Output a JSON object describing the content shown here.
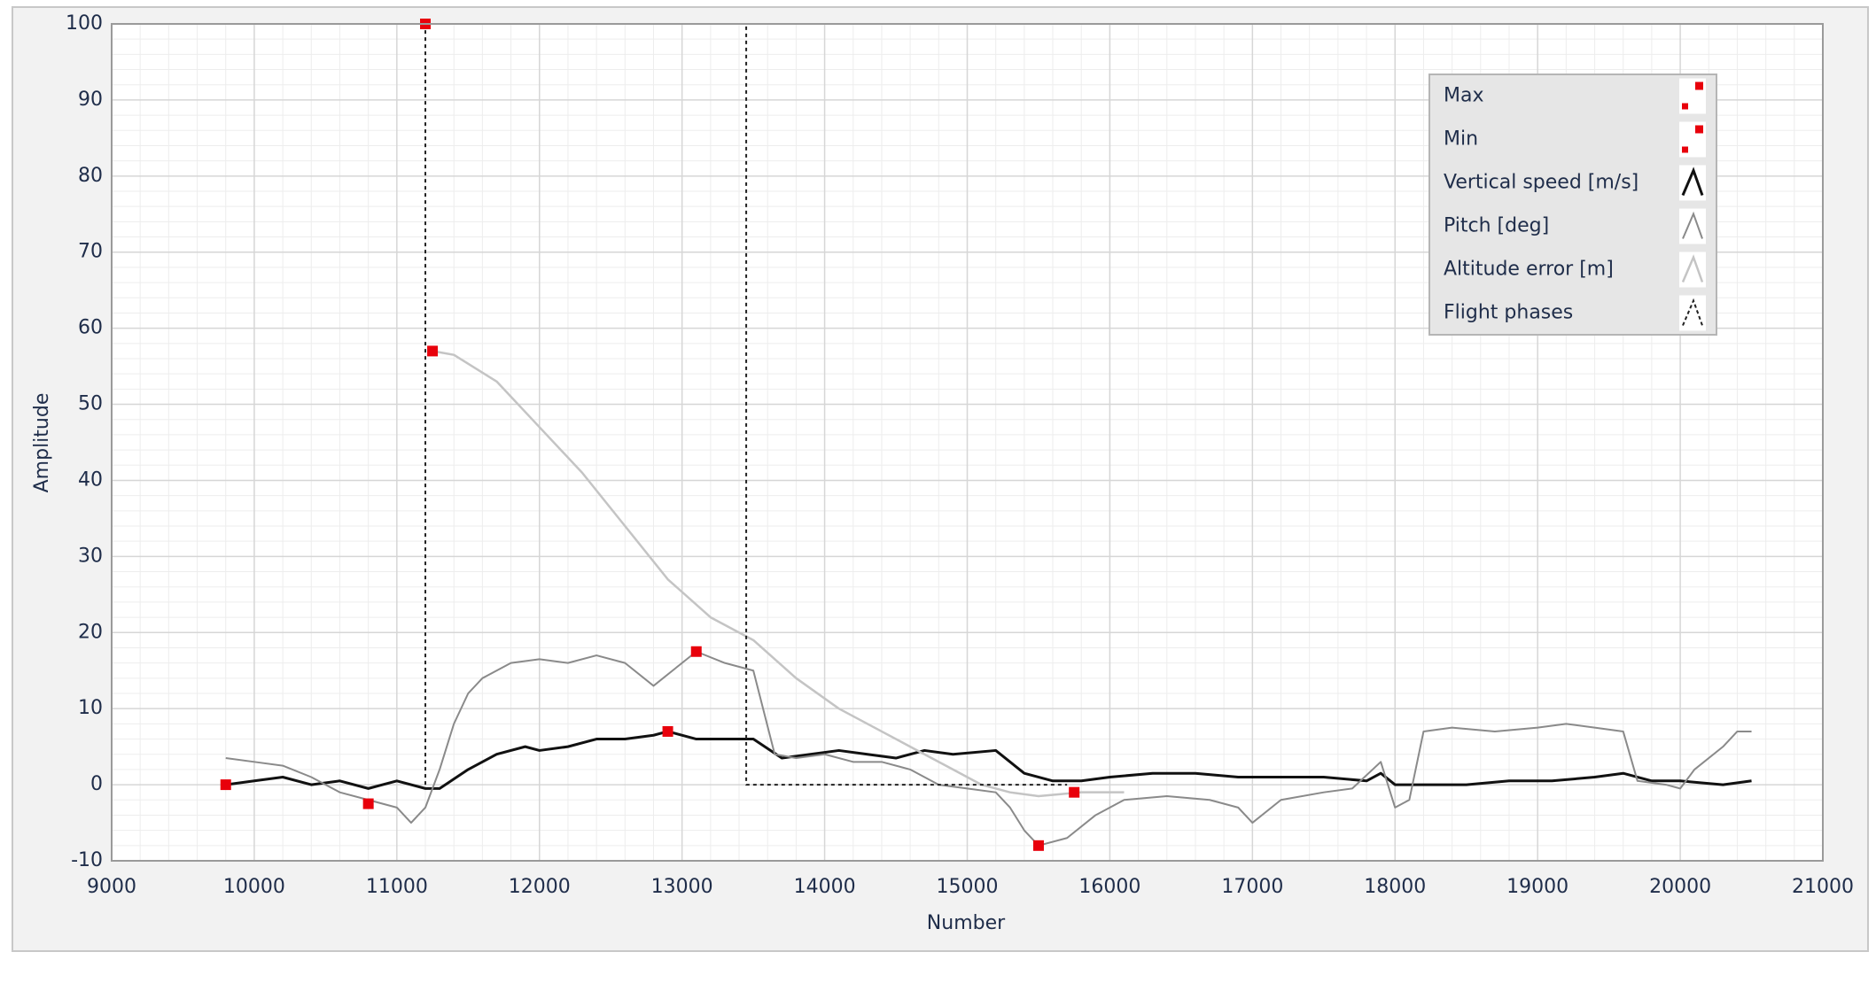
{
  "chart_data": {
    "type": "line",
    "xlabel": "Number",
    "ylabel": "Amplitude",
    "xlim": [
      9000,
      21000
    ],
    "ylim": [
      -10,
      100
    ],
    "xticks": [
      9000,
      10000,
      11000,
      12000,
      13000,
      14000,
      15000,
      16000,
      17000,
      18000,
      19000,
      20000,
      21000
    ],
    "yticks": [
      -10,
      0,
      10,
      20,
      30,
      40,
      50,
      60,
      70,
      80,
      90,
      100
    ],
    "grid": true,
    "minor_grid": true,
    "legend": "upper right",
    "series": [
      {
        "name": "Max",
        "type": "scatter",
        "color": "#e8000b",
        "x": [
          11200,
          11250,
          13100,
          12900
        ],
        "values": [
          100,
          57,
          17.5,
          7
        ]
      },
      {
        "name": "Min",
        "type": "scatter",
        "color": "#e8000b",
        "x": [
          9800,
          10800,
          15500,
          15750
        ],
        "values": [
          0,
          -2.5,
          -8,
          -1
        ]
      },
      {
        "name": "Vertical speed [m/s]",
        "color": "#111111",
        "linewidth": 3,
        "x": [
          9800,
          10000,
          10200,
          10400,
          10600,
          10800,
          11000,
          11200,
          11300,
          11500,
          11700,
          11900,
          12000,
          12200,
          12400,
          12600,
          12800,
          12900,
          13100,
          13300,
          13500,
          13700,
          13900,
          14100,
          14300,
          14500,
          14700,
          14900,
          15200,
          15400,
          15600,
          15800,
          16000,
          16300,
          16600,
          16900,
          17200,
          17500,
          17800,
          17900,
          18000,
          18200,
          18500,
          18800,
          19100,
          19400,
          19600,
          19800,
          20000,
          20300,
          20500
        ],
        "values": [
          0,
          0.5,
          1,
          0,
          0.5,
          -0.5,
          0.5,
          -0.5,
          -0.5,
          2,
          4,
          5,
          4.5,
          5,
          6,
          6,
          6.5,
          7,
          6,
          6,
          6,
          3.5,
          4,
          4.5,
          4,
          3.5,
          4.5,
          4,
          4.5,
          1.5,
          0.5,
          0.5,
          1,
          1.5,
          1.5,
          1,
          1,
          1,
          0.5,
          1.5,
          0,
          0,
          0,
          0.5,
          0.5,
          1,
          1.5,
          0.5,
          0.5,
          0,
          0.5
        ]
      },
      {
        "name": "Pitch [deg]",
        "color": "#8a8a8a",
        "linewidth": 2,
        "x": [
          9800,
          10000,
          10200,
          10400,
          10600,
          10800,
          11000,
          11100,
          11200,
          11300,
          11400,
          11500,
          11600,
          11800,
          12000,
          12200,
          12400,
          12600,
          12800,
          13000,
          13100,
          13300,
          13500,
          13650,
          13800,
          14000,
          14200,
          14400,
          14600,
          14800,
          15000,
          15200,
          15300,
          15400,
          15500,
          15700,
          15900,
          16100,
          16400,
          16700,
          16900,
          17000,
          17200,
          17500,
          17700,
          17900,
          18000,
          18100,
          18200,
          18400,
          18700,
          19000,
          19200,
          19400,
          19600,
          19700,
          19900,
          20000,
          20100,
          20300,
          20400,
          20500
        ],
        "values": [
          3.5,
          3,
          2.5,
          1,
          -1,
          -2,
          -3,
          -5,
          -3,
          2,
          8,
          12,
          14,
          16,
          16.5,
          16,
          17,
          16,
          13,
          16,
          17.5,
          16,
          15,
          4,
          3.5,
          4,
          3,
          3,
          2,
          0,
          -0.5,
          -1,
          -3,
          -6,
          -8,
          -7,
          -4,
          -2,
          -1.5,
          -2,
          -3,
          -5,
          -2,
          -1,
          -0.5,
          3,
          -3,
          -2,
          7,
          7.5,
          7,
          7.5,
          8,
          7.5,
          7,
          0.5,
          0,
          -0.5,
          2,
          5,
          7,
          7
        ]
      },
      {
        "name": "Altitude error [m]",
        "color": "#c4c4c4",
        "linewidth": 2.5,
        "x": [
          11250,
          11400,
          11700,
          12000,
          12300,
          12600,
          12900,
          13200,
          13500,
          13800,
          14100,
          14400,
          14700,
          14900,
          15100,
          15300,
          15500,
          15800,
          16100
        ],
        "values": [
          57,
          56.5,
          53,
          47,
          41,
          34,
          27,
          22,
          19,
          14,
          10,
          7,
          4,
          2,
          0,
          -1,
          -1.5,
          -1,
          -1
        ]
      },
      {
        "name": "Flight phases",
        "color": "#222222",
        "linewidth": 2,
        "dash": true,
        "x": [
          11200,
          11200,
          13450,
          13450,
          15700
        ],
        "values": [
          0,
          100,
          100,
          0,
          0
        ]
      }
    ]
  }
}
